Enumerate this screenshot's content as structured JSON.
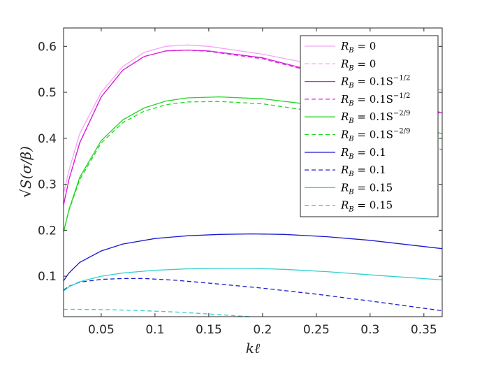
{
  "chart_data": {
    "type": "line",
    "xlabel": "kℓ",
    "ylabel": "√S(σ/β)",
    "xlim": [
      0.015,
      0.367
    ],
    "ylim": [
      0.012,
      0.64
    ],
    "xticks": [
      0.05,
      0.1,
      0.15,
      0.2,
      0.25,
      0.3,
      0.35
    ],
    "xtick_labels": [
      "0.05",
      "0.1",
      "0.15",
      "0.2",
      "0.25",
      "0.3",
      "0.35"
    ],
    "yticks": [
      0.1,
      0.2,
      0.3,
      0.4,
      0.5,
      0.6
    ],
    "ytick_labels": [
      "0.1",
      "0.2",
      "0.3",
      "0.4",
      "0.5",
      "0.6"
    ],
    "grid": false,
    "legend_position": "top-right",
    "series": [
      {
        "name": "R_B = 0",
        "label_main": "R",
        "label_sub": "B",
        "label_rest": " = 0",
        "label_sup": "",
        "color": "#f4a6f4",
        "dash": "solid",
        "x": [
          0.015,
          0.02,
          0.03,
          0.05,
          0.07,
          0.09,
          0.11,
          0.13,
          0.15,
          0.2,
          0.25,
          0.3,
          0.367
        ],
        "y": [
          0.28,
          0.33,
          0.41,
          0.5,
          0.556,
          0.587,
          0.6,
          0.603,
          0.6,
          0.583,
          0.56,
          0.536,
          0.505
        ]
      },
      {
        "name": "R_B = 0",
        "label_main": "R",
        "label_sub": "B",
        "label_rest": " = 0",
        "label_sup": "",
        "color": "#f4a6f4",
        "dash": "dashed",
        "x": [
          0.25,
          0.3,
          0.367
        ],
        "y": [
          0.56,
          0.536,
          0.505
        ]
      },
      {
        "name": "R_B = 0.1S^{-1/2}",
        "label_main": "R",
        "label_sub": "B",
        "label_rest": " = 0.1S",
        "label_sup": "−1/2",
        "color": "#d81fd8",
        "dash": "solid",
        "x": [
          0.015,
          0.02,
          0.03,
          0.05,
          0.07,
          0.09,
          0.11,
          0.13,
          0.15,
          0.2,
          0.25,
          0.3,
          0.367
        ],
        "y": [
          0.255,
          0.31,
          0.39,
          0.49,
          0.548,
          0.578,
          0.59,
          0.592,
          0.59,
          0.575,
          0.545,
          0.505,
          0.455
        ]
      },
      {
        "name": "R_B = 0.1S^{-1/2}",
        "label_main": "R",
        "label_sub": "B",
        "label_rest": " = 0.1S",
        "label_sup": "−1/2",
        "color": "#d81fd8",
        "dash": "dashed",
        "x": [
          0.015,
          0.02,
          0.03,
          0.05,
          0.07,
          0.09,
          0.11,
          0.13,
          0.15,
          0.2,
          0.25,
          0.3,
          0.367
        ],
        "y": [
          0.255,
          0.31,
          0.39,
          0.49,
          0.548,
          0.578,
          0.59,
          0.592,
          0.589,
          0.573,
          0.543,
          0.503,
          0.453
        ]
      },
      {
        "name": "R_B = 0.1S^{-2/9}",
        "label_main": "R",
        "label_sub": "B",
        "label_rest": " = 0.1S",
        "label_sup": "−2/9",
        "color": "#1fd81f",
        "dash": "solid",
        "x": [
          0.015,
          0.02,
          0.03,
          0.05,
          0.07,
          0.09,
          0.11,
          0.13,
          0.16,
          0.2,
          0.25,
          0.3,
          0.367
        ],
        "y": [
          0.196,
          0.245,
          0.315,
          0.395,
          0.44,
          0.466,
          0.481,
          0.488,
          0.49,
          0.486,
          0.472,
          0.45,
          0.41
        ]
      },
      {
        "name": "R_B = 0.1S^{-2/9}",
        "label_main": "R",
        "label_sub": "B",
        "label_rest": " = 0.1S",
        "label_sup": "−2/9",
        "color": "#1fd81f",
        "dash": "dashed",
        "x": [
          0.015,
          0.02,
          0.03,
          0.05,
          0.07,
          0.09,
          0.11,
          0.13,
          0.16,
          0.2,
          0.25,
          0.3,
          0.367
        ],
        "y": [
          0.196,
          0.243,
          0.31,
          0.39,
          0.434,
          0.459,
          0.473,
          0.479,
          0.48,
          0.475,
          0.458,
          0.43,
          0.375
        ]
      },
      {
        "name": "R_B = 0.1",
        "label_main": "R",
        "label_sub": "B",
        "label_rest": " = 0.1",
        "label_sup": "",
        "color": "#1a1acf",
        "dash": "solid",
        "x": [
          0.015,
          0.02,
          0.03,
          0.05,
          0.07,
          0.1,
          0.13,
          0.16,
          0.19,
          0.22,
          0.26,
          0.3,
          0.367
        ],
        "y": [
          0.09,
          0.107,
          0.13,
          0.155,
          0.17,
          0.182,
          0.188,
          0.191,
          0.192,
          0.191,
          0.186,
          0.178,
          0.16
        ]
      },
      {
        "name": "R_B = 0.1",
        "label_main": "R",
        "label_sub": "B",
        "label_rest": " = 0.1",
        "label_sup": "",
        "color": "#1a1acf",
        "dash": "dashed",
        "x": [
          0.015,
          0.02,
          0.03,
          0.05,
          0.07,
          0.09,
          0.12,
          0.15,
          0.2,
          0.25,
          0.3,
          0.367
        ],
        "y": [
          0.07,
          0.078,
          0.087,
          0.093,
          0.095,
          0.095,
          0.091,
          0.085,
          0.074,
          0.061,
          0.046,
          0.025
        ]
      },
      {
        "name": "R_B = 0.15",
        "label_main": "R",
        "label_sub": "B",
        "label_rest": " = 0.15",
        "label_sup": "",
        "color": "#2fd0d0",
        "dash": "solid",
        "x": [
          0.015,
          0.02,
          0.03,
          0.05,
          0.07,
          0.1,
          0.13,
          0.16,
          0.19,
          0.22,
          0.26,
          0.3,
          0.367
        ],
        "y": [
          0.068,
          0.077,
          0.088,
          0.1,
          0.107,
          0.113,
          0.116,
          0.117,
          0.117,
          0.115,
          0.11,
          0.103,
          0.092
        ]
      },
      {
        "name": "R_B = 0.15",
        "label_main": "R",
        "label_sub": "B",
        "label_rest": " = 0.15",
        "label_sup": "",
        "color": "#2fd0d0",
        "dash": "dashed",
        "x": [
          0.015,
          0.03,
          0.06,
          0.09,
          0.12,
          0.15,
          0.175,
          0.19
        ],
        "y": [
          0.028,
          0.028,
          0.027,
          0.025,
          0.022,
          0.018,
          0.014,
          0.012
        ]
      }
    ]
  }
}
